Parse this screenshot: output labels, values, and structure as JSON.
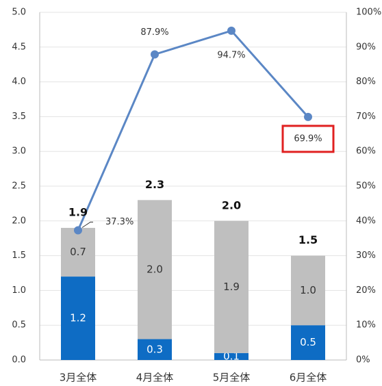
{
  "chart_data": {
    "type": "bar",
    "stacked": true,
    "categories": [
      "3月全体",
      "4月全体",
      "5月全体",
      "6月全体"
    ],
    "series": [
      {
        "color": "#0e6cc4",
        "values": [
          1.2,
          0.3,
          0.1,
          0.5
        ],
        "value_labels": [
          "1.2",
          "0.3",
          "0.1",
          "0.5"
        ]
      },
      {
        "color": "#bfbfbf",
        "values": [
          0.7,
          2.0,
          1.9,
          1.0
        ],
        "value_labels": [
          "0.7",
          "2.0",
          "1.9",
          "1.0"
        ]
      },
      {
        "type": "line",
        "axis": "y2",
        "color": "#5b87c5",
        "values": [
          37.3,
          87.9,
          94.7,
          69.9
        ],
        "value_labels": [
          "37.3%",
          "87.9%",
          "94.7%",
          "69.9%"
        ]
      }
    ],
    "totals": [
      1.9,
      2.3,
      2.0,
      1.5
    ],
    "total_labels": [
      "1.9",
      "2.3",
      "2.0",
      "1.5"
    ],
    "ylim": [
      0,
      5
    ],
    "yticks": [
      {
        "value": 0,
        "label": "0.0"
      },
      {
        "value": 0.5,
        "label": "0.5"
      },
      {
        "value": 1,
        "label": "1.0"
      },
      {
        "value": 1.5,
        "label": "1.5"
      },
      {
        "value": 2,
        "label": "2.0"
      },
      {
        "value": 2.5,
        "label": "2.5"
      },
      {
        "value": 3,
        "label": "3.0"
      },
      {
        "value": 3.5,
        "label": "3.5"
      },
      {
        "value": 4,
        "label": "4.0"
      },
      {
        "value": 4.5,
        "label": "4.5"
      },
      {
        "value": 5,
        "label": "5.0"
      }
    ],
    "y2lim": [
      0,
      100
    ],
    "y2ticks": [
      {
        "value": 0,
        "label": "0%"
      },
      {
        "value": 10,
        "label": "10%"
      },
      {
        "value": 20,
        "label": "20%"
      },
      {
        "value": 30,
        "label": "30%"
      },
      {
        "value": 40,
        "label": "40%"
      },
      {
        "value": 50,
        "label": "50%"
      },
      {
        "value": 60,
        "label": "60%"
      },
      {
        "value": 70,
        "label": "70%"
      },
      {
        "value": 80,
        "label": "80%"
      },
      {
        "value": 90,
        "label": "90%"
      },
      {
        "value": 100,
        "label": "100%"
      }
    ],
    "grid": true
  }
}
